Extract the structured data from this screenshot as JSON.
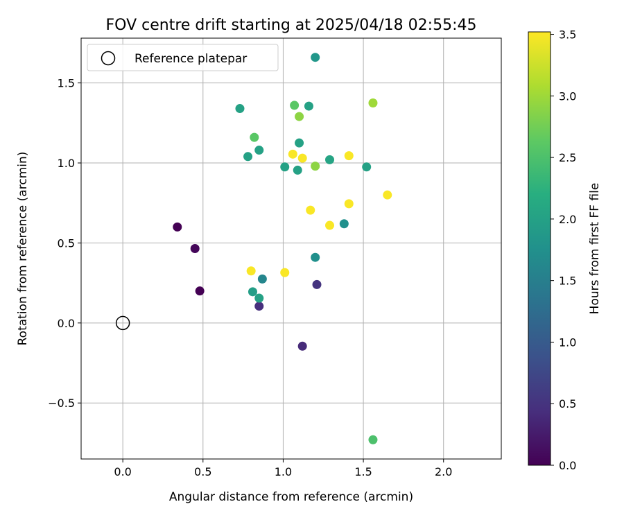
{
  "chart_data": {
    "type": "scatter",
    "title": "FOV centre drift starting at 2025/04/18 02:55:45",
    "xlabel": "Angular distance from reference (arcmin)",
    "ylabel": "Rotation from reference (arcmin)",
    "xlim": [
      -0.26,
      2.36
    ],
    "ylim": [
      -0.85,
      1.78
    ],
    "xticks": [
      0.0,
      0.5,
      1.0,
      1.5,
      2.0
    ],
    "xtick_labels": [
      "0.0",
      "0.5",
      "1.0",
      "1.5",
      "2.0"
    ],
    "yticks": [
      -0.5,
      0.0,
      0.5,
      1.0,
      1.5
    ],
    "ytick_labels": [
      "−0.5",
      "0.0",
      "0.5",
      "1.0",
      "1.5"
    ],
    "grid": true,
    "legend": {
      "location": "top-left",
      "entries": [
        {
          "label": "Reference platepar",
          "marker": "open-circle",
          "x": 0.0,
          "y": 0.0
        }
      ]
    },
    "colorbar": {
      "label": "Hours from first FF file",
      "colormap": "viridis",
      "range": [
        0.0,
        3.52
      ],
      "ticks": [
        0.0,
        0.5,
        1.0,
        1.5,
        2.0,
        2.5,
        3.0,
        3.5
      ],
      "tick_labels": [
        "0.0",
        "0.5",
        "1.0",
        "1.5",
        "2.0",
        "2.5",
        "3.0",
        "3.5"
      ]
    },
    "points": [
      {
        "x": 0.34,
        "y": 0.6,
        "c": 0.0
      },
      {
        "x": 0.45,
        "y": 0.465,
        "c": 0.05
      },
      {
        "x": 0.48,
        "y": 0.2,
        "c": 0.0
      },
      {
        "x": 1.12,
        "y": -0.145,
        "c": 0.4
      },
      {
        "x": 0.85,
        "y": 0.105,
        "c": 0.45
      },
      {
        "x": 1.21,
        "y": 0.24,
        "c": 0.5
      },
      {
        "x": 0.87,
        "y": 0.275,
        "c": 1.6
      },
      {
        "x": 1.2,
        "y": 0.41,
        "c": 1.75
      },
      {
        "x": 1.38,
        "y": 0.62,
        "c": 1.75
      },
      {
        "x": 0.81,
        "y": 0.195,
        "c": 1.95
      },
      {
        "x": 0.85,
        "y": 0.155,
        "c": 2.0
      },
      {
        "x": 1.2,
        "y": 1.66,
        "c": 1.85
      },
      {
        "x": 0.73,
        "y": 1.34,
        "c": 2.0
      },
      {
        "x": 1.16,
        "y": 1.355,
        "c": 2.0
      },
      {
        "x": 0.85,
        "y": 1.08,
        "c": 2.0
      },
      {
        "x": 0.78,
        "y": 1.04,
        "c": 2.0
      },
      {
        "x": 1.1,
        "y": 1.125,
        "c": 2.0
      },
      {
        "x": 1.01,
        "y": 0.975,
        "c": 2.0
      },
      {
        "x": 1.09,
        "y": 0.955,
        "c": 2.0
      },
      {
        "x": 1.29,
        "y": 1.02,
        "c": 2.05
      },
      {
        "x": 1.52,
        "y": 0.975,
        "c": 2.0
      },
      {
        "x": 0.82,
        "y": 1.16,
        "c": 2.6
      },
      {
        "x": 1.07,
        "y": 1.36,
        "c": 2.6
      },
      {
        "x": 1.56,
        "y": -0.73,
        "c": 2.5
      },
      {
        "x": 1.1,
        "y": 1.29,
        "c": 2.9
      },
      {
        "x": 1.2,
        "y": 0.98,
        "c": 2.9
      },
      {
        "x": 1.56,
        "y": 1.375,
        "c": 3.0
      },
      {
        "x": 1.06,
        "y": 1.055,
        "c": 3.5
      },
      {
        "x": 1.12,
        "y": 1.03,
        "c": 3.5
      },
      {
        "x": 1.41,
        "y": 1.045,
        "c": 3.5
      },
      {
        "x": 1.17,
        "y": 0.705,
        "c": 3.5
      },
      {
        "x": 1.29,
        "y": 0.61,
        "c": 3.5
      },
      {
        "x": 1.41,
        "y": 0.745,
        "c": 3.5
      },
      {
        "x": 1.65,
        "y": 0.8,
        "c": 3.5
      },
      {
        "x": 0.8,
        "y": 0.325,
        "c": 3.5
      },
      {
        "x": 1.01,
        "y": 0.315,
        "c": 3.5
      }
    ]
  }
}
